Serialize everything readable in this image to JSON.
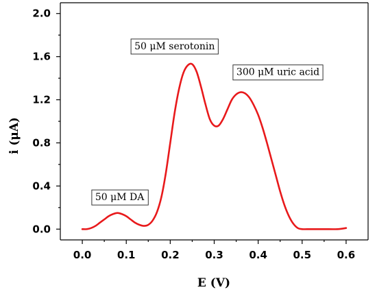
{
  "chart_data": {
    "type": "line",
    "xlabel": "E (V)",
    "ylabel": "i (μA)",
    "xlim": [
      -0.05,
      0.65
    ],
    "ylim": [
      -0.1,
      2.1
    ],
    "x_ticks": [
      "0.0",
      "0.1",
      "0.2",
      "0.3",
      "0.4",
      "0.5",
      "0.6"
    ],
    "y_ticks": [
      "0.0",
      "0.4",
      "0.8",
      "1.2",
      "1.6",
      "2.0"
    ],
    "grid": false,
    "line_color": "#e8191b",
    "series": [
      {
        "x": [
          0.0,
          0.01,
          0.02,
          0.03,
          0.04,
          0.05,
          0.06,
          0.07,
          0.08,
          0.09,
          0.1,
          0.11,
          0.12,
          0.13,
          0.14,
          0.15,
          0.16,
          0.17,
          0.18,
          0.19,
          0.2,
          0.21,
          0.22,
          0.23,
          0.24,
          0.25,
          0.26,
          0.27,
          0.28,
          0.29,
          0.3,
          0.31,
          0.32,
          0.33,
          0.34,
          0.35,
          0.36,
          0.37,
          0.38,
          0.39,
          0.4,
          0.41,
          0.42,
          0.43,
          0.44,
          0.45,
          0.46,
          0.47,
          0.48,
          0.49,
          0.5,
          0.52,
          0.55,
          0.58,
          0.6
        ],
        "y": [
          0.0,
          0.0,
          0.01,
          0.03,
          0.06,
          0.09,
          0.12,
          0.14,
          0.15,
          0.14,
          0.12,
          0.09,
          0.06,
          0.04,
          0.03,
          0.04,
          0.08,
          0.16,
          0.3,
          0.52,
          0.8,
          1.08,
          1.3,
          1.45,
          1.52,
          1.53,
          1.46,
          1.32,
          1.16,
          1.02,
          0.96,
          0.96,
          1.02,
          1.11,
          1.2,
          1.25,
          1.27,
          1.26,
          1.22,
          1.15,
          1.06,
          0.94,
          0.8,
          0.65,
          0.5,
          0.35,
          0.22,
          0.12,
          0.05,
          0.01,
          0.0,
          0.0,
          0.0,
          0.0,
          0.01
        ]
      }
    ],
    "annotations": [
      {
        "text": "50 μM DA",
        "x": 0.085,
        "y": 0.3
      },
      {
        "text": "50 μM serotonin",
        "x": 0.21,
        "y": 1.7
      },
      {
        "text": "300 μM uric acid",
        "x": 0.445,
        "y": 1.46
      }
    ]
  }
}
